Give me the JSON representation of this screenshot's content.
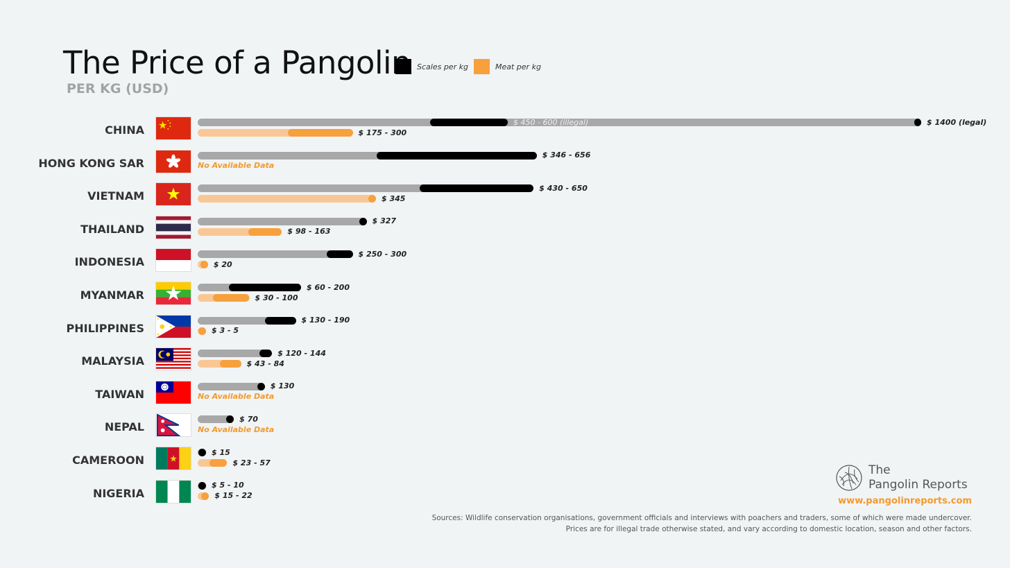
{
  "title": "The Price of a Pangolin",
  "subtitle": "PER KG (USD)",
  "legend": [
    {
      "label": "Scales per kg",
      "color": "#000000"
    },
    {
      "label": "Meat per kg",
      "color": "#f7a03c"
    }
  ],
  "chart_data": {
    "type": "bar",
    "orientation": "horizontal",
    "unit": "USD per kg",
    "series": [
      {
        "name": "Scales per kg",
        "color": "#000000",
        "track_color": "#a8a8a8"
      },
      {
        "name": "Meat per kg",
        "color": "#f7a03c",
        "track_color": "#f9c795"
      }
    ],
    "rows": [
      {
        "country": "CHINA",
        "flag": "china",
        "scales": [
          450,
          600
        ],
        "scales_label": "$ 450 - 600 (illegal)",
        "scales_extra": 1400,
        "scales_extra_label": "$ 1400 (legal)",
        "meat": [
          175,
          300
        ],
        "meat_label": "$ 175 - 300"
      },
      {
        "country": "HONG KONG SAR",
        "flag": "hongkong",
        "scales": [
          346,
          656
        ],
        "scales_label": "$ 346 - 656",
        "meat": null,
        "meat_label": "No Available Data"
      },
      {
        "country": "VIETNAM",
        "flag": "vietnam",
        "scales": [
          430,
          650
        ],
        "scales_label": "$ 430 - 650",
        "meat": [
          345,
          345
        ],
        "meat_label": "$ 345"
      },
      {
        "country": "THAILAND",
        "flag": "thailand",
        "scales": [
          327,
          327
        ],
        "scales_label": "$ 327",
        "meat": [
          98,
          163
        ],
        "meat_label": "$ 98 - 163"
      },
      {
        "country": "INDONESIA",
        "flag": "indonesia",
        "scales": [
          250,
          300
        ],
        "scales_label": "$ 250 - 300",
        "meat": [
          20,
          20
        ],
        "meat_label": "$ 20"
      },
      {
        "country": "MYANMAR",
        "flag": "myanmar",
        "scales": [
          60,
          200
        ],
        "scales_label": "$ 60 - 200",
        "meat": [
          30,
          100
        ],
        "meat_label": "$ 30 - 100"
      },
      {
        "country": "PHILIPPINES",
        "flag": "philippines",
        "scales": [
          130,
          190
        ],
        "scales_label": "$ 130 - 190",
        "meat": [
          3,
          5
        ],
        "meat_label": "$ 3 - 5"
      },
      {
        "country": "MALAYSIA",
        "flag": "malaysia",
        "scales": [
          120,
          144
        ],
        "scales_label": "$ 120 - 144",
        "meat": [
          43,
          84
        ],
        "meat_label": "$ 43 - 84"
      },
      {
        "country": "TAIWAN",
        "flag": "taiwan",
        "scales": [
          130,
          130
        ],
        "scales_label": "$ 130",
        "meat": null,
        "meat_label": "No Available Data"
      },
      {
        "country": "NEPAL",
        "flag": "nepal",
        "scales": [
          70,
          70
        ],
        "scales_label": "$ 70",
        "meat": null,
        "meat_label": "No Available Data"
      },
      {
        "country": "CAMEROON",
        "flag": "cameroon",
        "scales": [
          15,
          15
        ],
        "scales_label": "$ 15",
        "meat": [
          23,
          57
        ],
        "meat_label": "$ 23 - 57"
      },
      {
        "country": "NIGERIA",
        "flag": "nigeria",
        "scales": [
          5,
          10
        ],
        "scales_label": "$ 5 - 10",
        "meat": [
          15,
          22
        ],
        "meat_label": "$ 15 - 22"
      }
    ]
  },
  "branding": {
    "logo_line1": "The",
    "logo_line2": "Pangolin Reports",
    "url": "www.pangolinreports.com"
  },
  "sources": {
    "line1": "Sources:  Wildlife conservation organisations, government officials and interviews with poachers and traders,  some of which were made undercover.",
    "line2": "Prices are for illegal trade otherwise stated, and vary according to domestic location, season and other factors."
  }
}
